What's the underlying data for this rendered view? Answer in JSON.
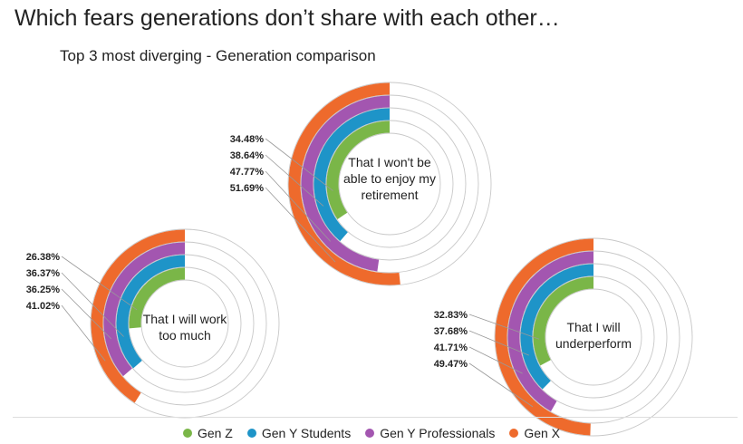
{
  "title": "Which fears generations don’t share with each other…",
  "subtitle": "Top 3 most diverging - Generation comparison",
  "legend": [
    {
      "label": "Gen Z",
      "color": "#7AB648"
    },
    {
      "label": "Gen Y Students",
      "color": "#1E94C8"
    },
    {
      "label": "Gen Y Professionals",
      "color": "#A356B0"
    },
    {
      "label": "Gen X",
      "color": "#EE6A2C"
    }
  ],
  "chart_data": [
    {
      "type": "radial-bar",
      "center_label": [
        "That I won't be",
        "able to enjoy my",
        "retirement"
      ],
      "series": [
        {
          "name": "Gen Z",
          "value": 34.48,
          "label": "34.48%"
        },
        {
          "name": "Gen Y Students",
          "value": 38.64,
          "label": "38.64%"
        },
        {
          "name": "Gen Y Professionals",
          "value": 47.77,
          "label": "47.77%"
        },
        {
          "name": "Gen X",
          "value": 51.69,
          "label": "51.69%"
        }
      ]
    },
    {
      "type": "radial-bar",
      "center_label": [
        "That I will work",
        "too much"
      ],
      "series": [
        {
          "name": "Gen Z",
          "value": 26.38,
          "label": "26.38%"
        },
        {
          "name": "Gen Y Students",
          "value": 36.37,
          "label": "36.37%"
        },
        {
          "name": "Gen Y Professionals",
          "value": 36.25,
          "label": "36.25%"
        },
        {
          "name": "Gen X",
          "value": 41.02,
          "label": "41.02%"
        }
      ]
    },
    {
      "type": "radial-bar",
      "center_label": [
        "That I will",
        "underperform"
      ],
      "series": [
        {
          "name": "Gen Z",
          "value": 32.83,
          "label": "32.83%"
        },
        {
          "name": "Gen Y Students",
          "value": 37.68,
          "label": "37.68%"
        },
        {
          "name": "Gen Y Professionals",
          "value": 41.71,
          "label": "41.71%"
        },
        {
          "name": "Gen X",
          "value": 49.47,
          "label": "49.47%"
        }
      ]
    }
  ]
}
